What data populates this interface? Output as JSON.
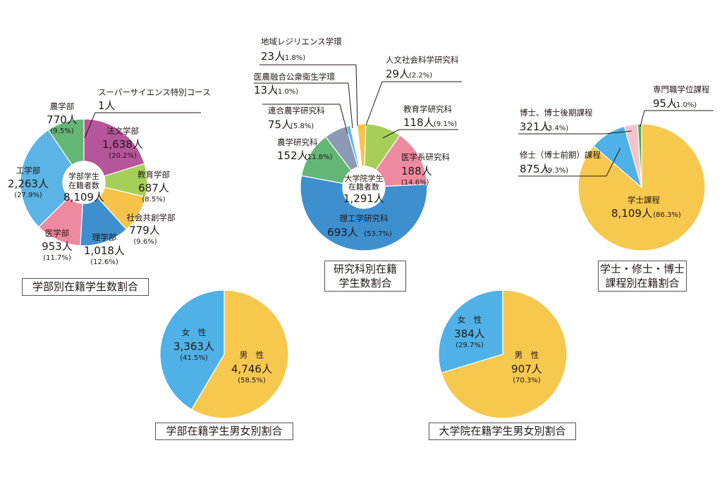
{
  "chart_data": [
    {
      "type": "pie",
      "variant": "donut",
      "title": "学部別在籍学生数割合",
      "center_label": [
        "学部学生",
        "在籍者数"
      ],
      "center_value": "8,109人",
      "slices": [
        {
          "name": "スーパーサイエンス特別コース",
          "count": "1人",
          "value": 0.0
        },
        {
          "name": "法文学部",
          "count": "1,638人",
          "pct_label": "(20.2%)",
          "value": 20.2,
          "color": "#b5559a"
        },
        {
          "name": "教育学部",
          "count": "687人",
          "pct_label": "(8.5%)",
          "value": 8.5,
          "color": "#a6cf5a"
        },
        {
          "name": "社会共創学部",
          "count": "779人",
          "pct_label": "(9.6%)",
          "value": 9.6,
          "color": "#f7c24a"
        },
        {
          "name": "理学部",
          "count": "1,018人",
          "pct_label": "(12.6%)",
          "value": 12.6,
          "color": "#3e8fce"
        },
        {
          "name": "医学部",
          "count": "953人",
          "pct_label": "(11.7%)",
          "value": 11.7,
          "color": "#ee8aa0"
        },
        {
          "name": "工学部",
          "count": "2,263人",
          "pct_label": "(27.9%)",
          "value": 27.9,
          "color": "#5bb4e5"
        },
        {
          "name": "農学部",
          "count": "770人",
          "pct_label": "(9.5%)",
          "value": 9.5,
          "color": "#64b677"
        }
      ]
    },
    {
      "type": "pie",
      "variant": "donut",
      "title_lines": [
        "研究科別在籍",
        "学生数割合"
      ],
      "center_label": [
        "大学院学生",
        "在籍者数"
      ],
      "center_value": "1,291人",
      "slices": [
        {
          "name": "人文社会科学研究科",
          "count": "29人",
          "pct_label": "(2.2%)",
          "value": 2.2,
          "color": "#f7c24a"
        },
        {
          "name": "教育学研究科",
          "count": "118人",
          "pct_label": "(9.1%)",
          "value": 9.1,
          "color": "#a6cf5a"
        },
        {
          "name": "医学系研究科",
          "count": "188人",
          "pct_label": "(14.6%)",
          "value": 14.6,
          "color": "#ee8aa0"
        },
        {
          "name": "理工学研究科",
          "count": "693人",
          "pct_label": "(53.7%)",
          "value": 53.7,
          "color": "#3e8fce"
        },
        {
          "name": "農学研究科",
          "count": "152人",
          "pct_label": "(11.8%)",
          "value": 11.8,
          "color": "#64b677"
        },
        {
          "name": "連合農学研究科",
          "count": "75人",
          "pct_label": "(5.8%)",
          "value": 5.8,
          "color": "#8a9bb3"
        },
        {
          "name": "医農融合公衆衛生学環",
          "count": "13人",
          "pct_label": "(1.0%)",
          "value": 1.0,
          "color": "#5bb4e5"
        },
        {
          "name": "地域レジリエンス学環",
          "count": "23人",
          "pct_label": "(1.8%)",
          "value": 1.8,
          "color": "#ffffff"
        }
      ]
    },
    {
      "type": "pie",
      "title_lines": [
        "学士・修士・博士",
        "課程別在籍割合"
      ],
      "slices": [
        {
          "name": "学士課程",
          "count": "8,109人",
          "pct_label": "(86.3%)",
          "value": 86.3,
          "color": "#f7c84e"
        },
        {
          "name": "修士（博士前期）課程",
          "count": "875人",
          "pct_label": "(9.3%)",
          "value": 9.3,
          "color": "#4fb1e6"
        },
        {
          "name": "博士、博士後期課程",
          "count": "321人",
          "pct_label": "(3.4%)",
          "value": 3.4,
          "color": "#f3c4cb"
        },
        {
          "name": "専門職学位課程",
          "count": "95人",
          "pct_label": "(1.0%)",
          "value": 1.0,
          "color": "#4fa85a"
        }
      ]
    },
    {
      "type": "pie",
      "title": "学部在籍学生男女別割合",
      "slices": [
        {
          "name": "男　性",
          "count": "4,746人",
          "pct_label": "(58.5%)",
          "value": 58.5,
          "color": "#f7c84e"
        },
        {
          "name": "女　性",
          "count": "3,363人",
          "pct_label": "(41.5%)",
          "value": 41.5,
          "color": "#4fb1e6"
        }
      ]
    },
    {
      "type": "pie",
      "title": "大学院在籍学生男女別割合",
      "slices": [
        {
          "name": "男　性",
          "count": "907人",
          "pct_label": "(70.3%)",
          "value": 70.3,
          "color": "#f7c84e"
        },
        {
          "name": "女　性",
          "count": "384人",
          "pct_label": "(29.7%)",
          "value": 29.7,
          "color": "#4fb1e6"
        }
      ]
    }
  ]
}
